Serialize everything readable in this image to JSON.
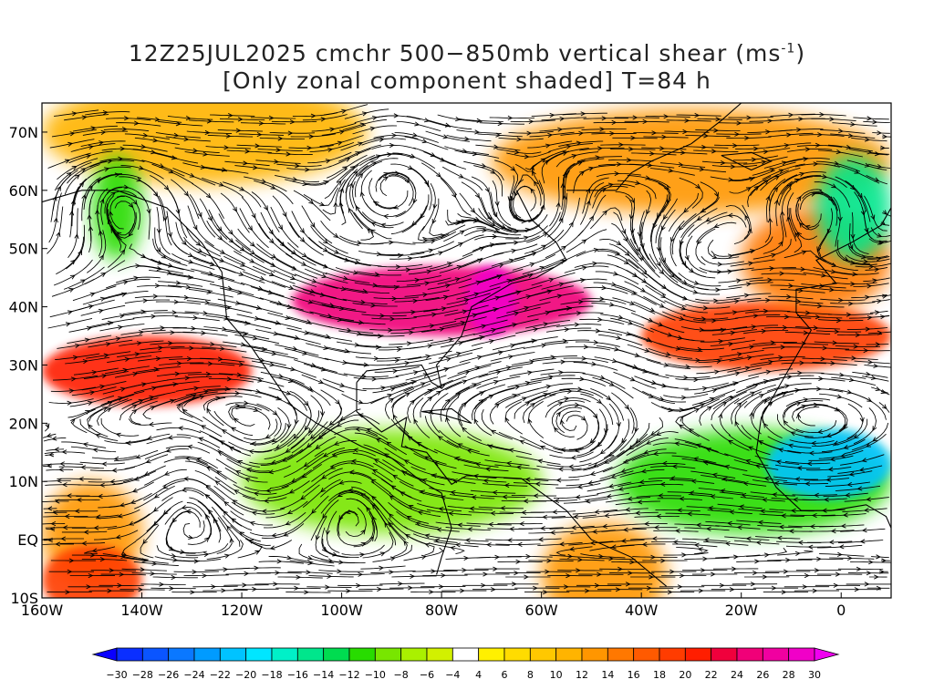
{
  "title": {
    "line1_prefix": "12Z25JUL2025 cmchr 500−850mb vertical shear (ms",
    "line1_sup": "-1",
    "line1_suffix": ")",
    "line2": "[Only zonal component shaded] T=84 h"
  },
  "map": {
    "projection": "lat-lon",
    "lon_range": [
      -160,
      10
    ],
    "lat_range": [
      -10,
      75
    ],
    "background": "#ffffff",
    "streamline_color": "#000000",
    "x_tick_labels": [
      {
        "lon": -160,
        "label": "160W"
      },
      {
        "lon": -140,
        "label": "140W"
      },
      {
        "lon": -120,
        "label": "120W"
      },
      {
        "lon": -100,
        "label": "100W"
      },
      {
        "lon": -80,
        "label": "80W"
      },
      {
        "lon": -60,
        "label": "60W"
      },
      {
        "lon": -40,
        "label": "40W"
      },
      {
        "lon": -20,
        "label": "20W"
      },
      {
        "lon": 0,
        "label": "0"
      }
    ],
    "y_tick_labels": [
      {
        "lat": 70,
        "label": "70N"
      },
      {
        "lat": 60,
        "label": "60N"
      },
      {
        "lat": 50,
        "label": "50N"
      },
      {
        "lat": 40,
        "label": "40N"
      },
      {
        "lat": 30,
        "label": "30N"
      },
      {
        "lat": 20,
        "label": "20N"
      },
      {
        "lat": 10,
        "label": "10N"
      },
      {
        "lat": 0,
        "label": "EQ"
      },
      {
        "lat": -10,
        "label": "10S"
      }
    ],
    "shading_features": [
      {
        "type": "positive-band",
        "value": 10,
        "lat": 70,
        "lon_range": [
          -160,
          -95
        ]
      },
      {
        "type": "positive-band",
        "value": 12,
        "lat": 65,
        "lon_range": [
          -70,
          10
        ]
      },
      {
        "type": "jet-core",
        "value": 24,
        "lat": 41,
        "lon_range": [
          -110,
          -50
        ]
      },
      {
        "type": "jet-core",
        "value": 28,
        "lat": 41,
        "lon_range": [
          -75,
          -65
        ]
      },
      {
        "type": "jet-core",
        "value": 20,
        "lat": 29,
        "lon_range": [
          -160,
          -118
        ]
      },
      {
        "type": "jet-core",
        "value": 18,
        "lat": 35,
        "lon_range": [
          -40,
          10
        ]
      },
      {
        "type": "positive-band",
        "value": 14,
        "lat": 48,
        "lon_range": [
          -20,
          10
        ]
      },
      {
        "type": "positive-band",
        "value": 12,
        "lat": 1,
        "lon_range": [
          -160,
          -140
        ]
      },
      {
        "type": "positive-band",
        "value": 18,
        "lat": -7,
        "lon_range": [
          -160,
          -140
        ]
      },
      {
        "type": "positive-band",
        "value": 12,
        "lat": -6,
        "lon_range": [
          -60,
          -35
        ]
      },
      {
        "type": "negative-region",
        "value": -10,
        "lat": 10,
        "lon_range": [
          -120,
          -60
        ]
      },
      {
        "type": "negative-region",
        "value": -12,
        "lat": 10,
        "lon_range": [
          -45,
          10
        ]
      },
      {
        "type": "negative-core",
        "value": -22,
        "lat": 13,
        "lon_range": [
          -15,
          10
        ]
      },
      {
        "type": "negative-region",
        "value": -12,
        "lat": 57,
        "lon_range": [
          -150,
          -140
        ]
      },
      {
        "type": "negative-region",
        "value": -16,
        "lat": 57,
        "lon_range": [
          -5,
          10
        ]
      }
    ]
  },
  "colorbar": {
    "levels": [
      "-30",
      "-28",
      "-26",
      "-24",
      "-22",
      "-20",
      "-18",
      "-16",
      "-14",
      "-12",
      "-10",
      "-8",
      "-6",
      "-4",
      "4",
      "6",
      "8",
      "10",
      "12",
      "14",
      "16",
      "18",
      "20",
      "22",
      "24",
      "26",
      "28",
      "30"
    ],
    "colors": [
      "#0a00ff",
      "#0a2fff",
      "#0a55ff",
      "#0a78ff",
      "#009bff",
      "#00c3ff",
      "#00e6ff",
      "#00f0c8",
      "#00e68c",
      "#00dc50",
      "#28dc00",
      "#78e600",
      "#aaf000",
      "#d2f000",
      "#ffffff",
      "#fff000",
      "#ffdc00",
      "#ffc800",
      "#ffb400",
      "#ff9600",
      "#ff7800",
      "#ff5a00",
      "#ff3c00",
      "#ff1e00",
      "#f0003c",
      "#f00078",
      "#f000a0",
      "#f000c8",
      "#f000f0"
    ]
  }
}
